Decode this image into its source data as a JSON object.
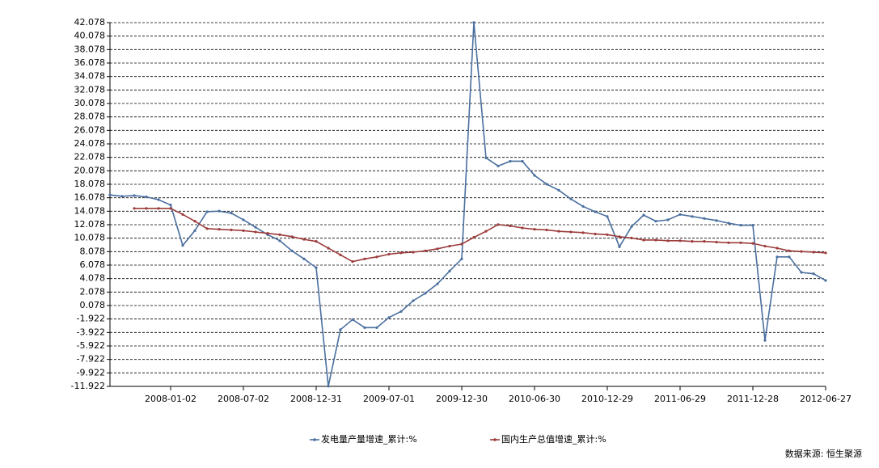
{
  "chart_data": {
    "type": "line",
    "categories": [
      null,
      null,
      null,
      null,
      null,
      "2008-01-02",
      null,
      null,
      null,
      null,
      null,
      "2008-07-02",
      null,
      null,
      null,
      null,
      null,
      "2008-12-31",
      null,
      null,
      null,
      null,
      null,
      "2009-07-01",
      null,
      null,
      null,
      null,
      null,
      "2009-12-30",
      null,
      null,
      null,
      null,
      null,
      "2010-06-30",
      null,
      null,
      null,
      null,
      null,
      "2010-12-29",
      null,
      null,
      null,
      null,
      null,
      "2011-06-29",
      null,
      null,
      null,
      null,
      null,
      "2011-12-28",
      null,
      null,
      null,
      null,
      null,
      "2012-06-27"
    ],
    "series": [
      {
        "name": "发电量产量增速_累计:%",
        "color": "#4a6f9f",
        "values": [
          16.5,
          16.3,
          16.4,
          16.2,
          15.8,
          15.0,
          9.0,
          11.2,
          14.0,
          14.1,
          13.8,
          12.8,
          11.7,
          10.6,
          9.7,
          8.2,
          7.0,
          5.7,
          -11.9,
          -3.5,
          -2.0,
          -3.2,
          -3.2,
          -1.7,
          -0.8,
          0.8,
          1.9,
          3.3,
          5.2,
          7.0,
          42.1,
          22.0,
          20.8,
          21.5,
          21.5,
          19.4,
          18.1,
          17.2,
          15.9,
          14.8,
          14.0,
          13.3,
          8.8,
          11.8,
          13.5,
          12.6,
          12.8,
          13.6,
          13.3,
          13.0,
          12.7,
          12.3,
          12.0,
          12.0,
          -5.1,
          7.3,
          7.3,
          5.0,
          4.8,
          3.8
        ]
      },
      {
        "name": "国内生产总值增速_累计:%",
        "color": "#9c3b3b",
        "values": [
          null,
          null,
          14.5,
          14.5,
          14.5,
          14.5,
          13.6,
          12.6,
          11.5,
          11.4,
          11.3,
          11.2,
          11.0,
          10.8,
          10.6,
          10.3,
          9.9,
          9.6,
          8.6,
          7.6,
          6.6,
          7.0,
          7.3,
          7.7,
          7.9,
          8.0,
          8.2,
          8.5,
          8.9,
          9.2,
          10.2,
          11.1,
          12.1,
          11.9,
          11.6,
          11.4,
          11.3,
          11.1,
          11.0,
          10.9,
          10.7,
          10.6,
          10.3,
          10.1,
          9.8,
          9.8,
          9.7,
          9.7,
          9.6,
          9.6,
          9.5,
          9.4,
          9.4,
          9.3,
          8.9,
          8.6,
          8.2,
          8.1,
          8.0,
          7.9
        ]
      }
    ],
    "ylim": [
      -11.922,
      42.078
    ],
    "yticks": [
      -11.922,
      -9.922,
      -7.922,
      -5.922,
      -3.922,
      -1.922,
      0.078,
      2.078,
      4.078,
      6.078,
      8.078,
      10.078,
      12.078,
      14.078,
      16.078,
      18.078,
      20.078,
      22.078,
      24.078,
      26.078,
      28.078,
      30.078,
      32.078,
      34.078,
      36.078,
      38.078,
      40.078,
      42.078
    ],
    "grid": true,
    "source": "数据来源: 恒生聚源"
  }
}
